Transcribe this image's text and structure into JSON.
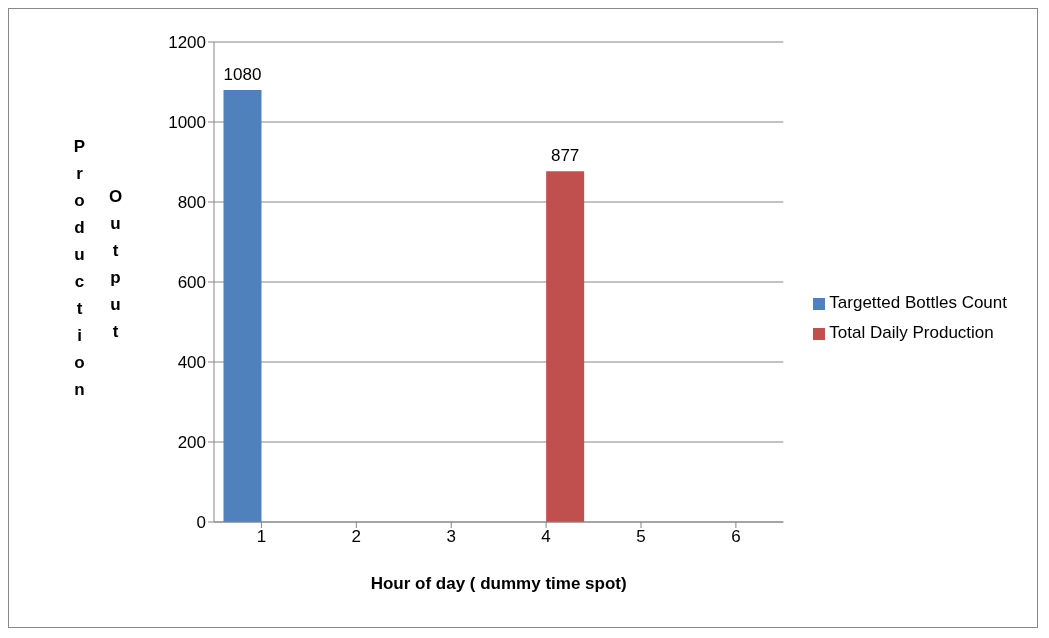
{
  "chart_data": {
    "type": "bar",
    "xlabel": "Hour of day ( dummy time spot)",
    "ylabel": "Production Output",
    "categories": [
      "1",
      "2",
      "3",
      "4",
      "5",
      "6"
    ],
    "series": [
      {
        "name": "Targetted Bottles Count",
        "color": "#4f81bd",
        "values": [
          1080,
          null,
          null,
          null,
          null,
          null
        ]
      },
      {
        "name": "Total Daily Production",
        "color": "#c0504d",
        "values": [
          null,
          null,
          null,
          877,
          null,
          null
        ]
      }
    ],
    "ylim": [
      0,
      1200
    ],
    "yticks": [
      0,
      200,
      400,
      600,
      800,
      1000,
      1200
    ],
    "grid": "y",
    "legend": "right",
    "data_labels": true
  }
}
